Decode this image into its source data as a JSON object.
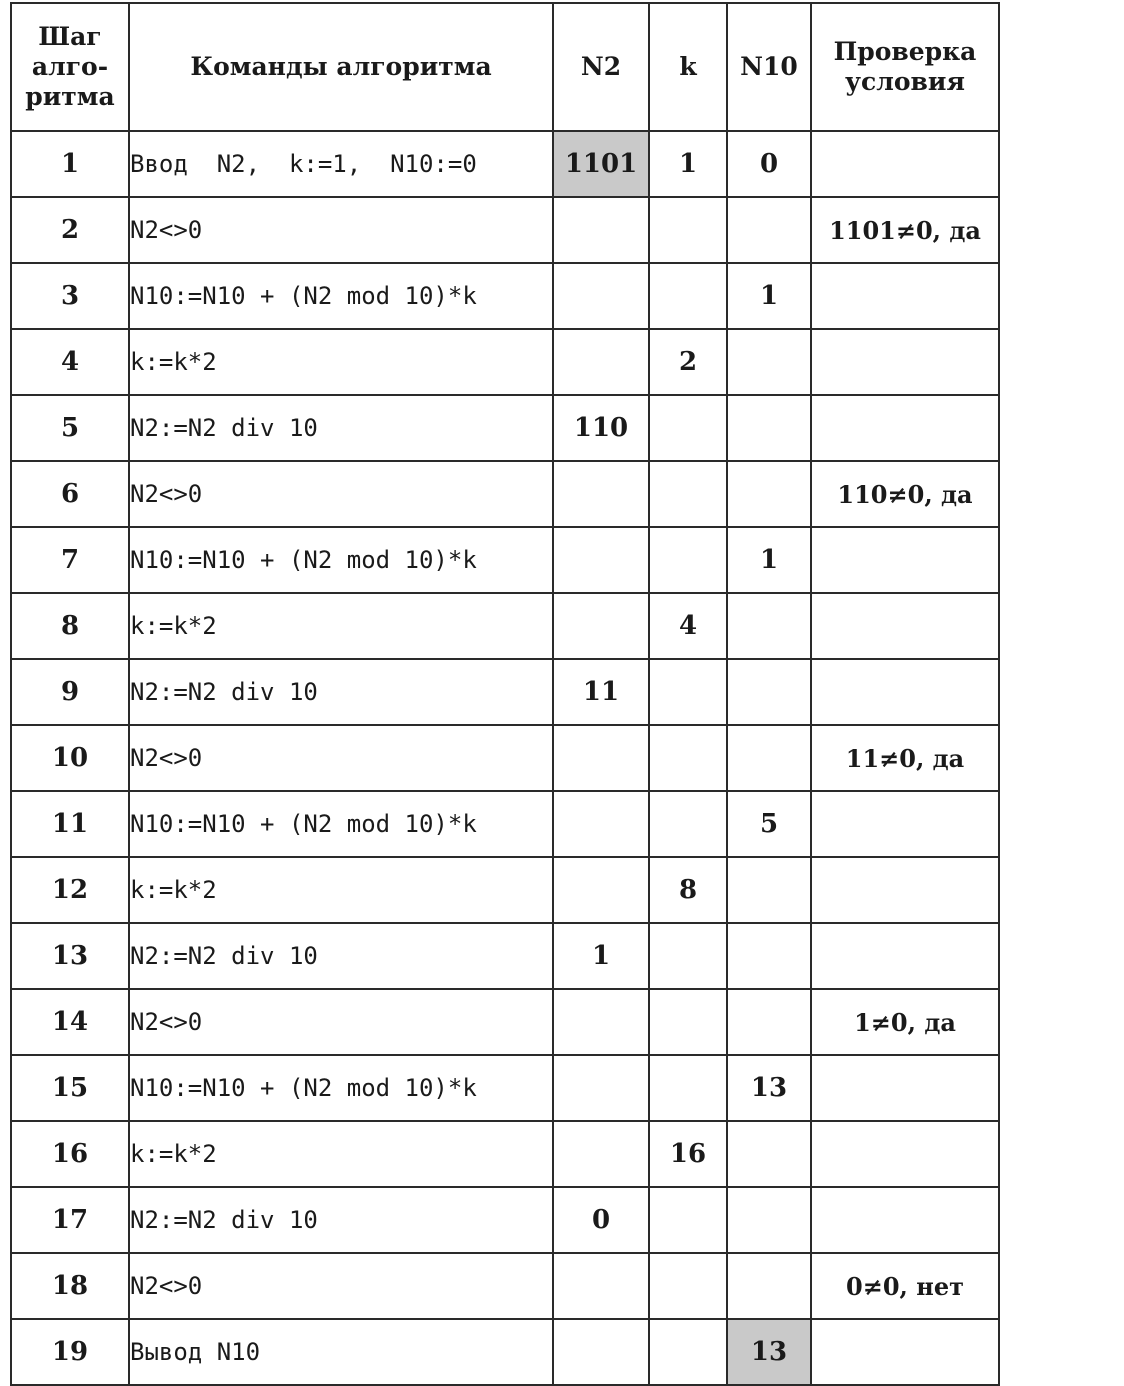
{
  "headers": {
    "step": "Шаг алго- ритма",
    "commands": "Команды алгоритма",
    "n2": "N2",
    "k": "k",
    "n10": "N10",
    "check": "Проверка условия"
  },
  "rows": [
    {
      "step": "1",
      "cmd": "Ввод  N2,  k:=1,  N10:=0",
      "n2": "1101",
      "k": "1",
      "n10": "0",
      "check": "",
      "n2_shaded": true,
      "n10_shaded": false
    },
    {
      "step": "2",
      "cmd": "N2<>0",
      "n2": "",
      "k": "",
      "n10": "",
      "check": "1101≠0, да",
      "n2_shaded": false,
      "n10_shaded": false
    },
    {
      "step": "3",
      "cmd": "N10:=N10 + (N2 mod 10)*k",
      "n2": "",
      "k": "",
      "n10": "1",
      "check": "",
      "n2_shaded": false,
      "n10_shaded": false
    },
    {
      "step": "4",
      "cmd": "k:=k*2",
      "n2": "",
      "k": "2",
      "n10": "",
      "check": "",
      "n2_shaded": false,
      "n10_shaded": false
    },
    {
      "step": "5",
      "cmd": "N2:=N2 div 10",
      "n2": "110",
      "k": "",
      "n10": "",
      "check": "",
      "n2_shaded": false,
      "n10_shaded": false
    },
    {
      "step": "6",
      "cmd": "N2<>0",
      "n2": "",
      "k": "",
      "n10": "",
      "check": "110≠0, да",
      "n2_shaded": false,
      "n10_shaded": false
    },
    {
      "step": "7",
      "cmd": "N10:=N10 + (N2 mod 10)*k",
      "n2": "",
      "k": "",
      "n10": "1",
      "check": "",
      "n2_shaded": false,
      "n10_shaded": false
    },
    {
      "step": "8",
      "cmd": "k:=k*2",
      "n2": "",
      "k": "4",
      "n10": "",
      "check": "",
      "n2_shaded": false,
      "n10_shaded": false
    },
    {
      "step": "9",
      "cmd": "N2:=N2 div 10",
      "n2": "11",
      "k": "",
      "n10": "",
      "check": "",
      "n2_shaded": false,
      "n10_shaded": false
    },
    {
      "step": "10",
      "cmd": "N2<>0",
      "n2": "",
      "k": "",
      "n10": "",
      "check": "11≠0, да",
      "n2_shaded": false,
      "n10_shaded": false
    },
    {
      "step": "11",
      "cmd": "N10:=N10 + (N2 mod 10)*k",
      "n2": "",
      "k": "",
      "n10": "5",
      "check": "",
      "n2_shaded": false,
      "n10_shaded": false
    },
    {
      "step": "12",
      "cmd": "k:=k*2",
      "n2": "",
      "k": "8",
      "n10": "",
      "check": "",
      "n2_shaded": false,
      "n10_shaded": false
    },
    {
      "step": "13",
      "cmd": "N2:=N2 div 10",
      "n2": "1",
      "k": "",
      "n10": "",
      "check": "",
      "n2_shaded": false,
      "n10_shaded": false
    },
    {
      "step": "14",
      "cmd": "N2<>0",
      "n2": "",
      "k": "",
      "n10": "",
      "check": "1≠0, да",
      "n2_shaded": false,
      "n10_shaded": false
    },
    {
      "step": "15",
      "cmd": "N10:=N10 + (N2 mod 10)*k",
      "n2": "",
      "k": "",
      "n10": "13",
      "check": "",
      "n2_shaded": false,
      "n10_shaded": false
    },
    {
      "step": "16",
      "cmd": "k:=k*2",
      "n2": "",
      "k": "16",
      "n10": "",
      "check": "",
      "n2_shaded": false,
      "n10_shaded": false
    },
    {
      "step": "17",
      "cmd": "N2:=N2 div 10",
      "n2": "0",
      "k": "",
      "n10": "",
      "check": "",
      "n2_shaded": false,
      "n10_shaded": false
    },
    {
      "step": "18",
      "cmd": "N2<>0",
      "n2": "",
      "k": "",
      "n10": "",
      "check": "0≠0, нет",
      "n2_shaded": false,
      "n10_shaded": false
    },
    {
      "step": "19",
      "cmd": "Вывод N10",
      "n2": "",
      "k": "",
      "n10": "13",
      "check": "",
      "n2_shaded": false,
      "n10_shaded": true
    }
  ]
}
